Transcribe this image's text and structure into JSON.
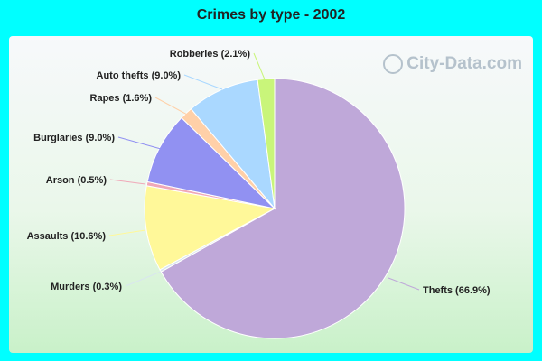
{
  "title": "Crimes by type - 2002",
  "watermark": "City-Data.com",
  "chart_data": {
    "type": "pie",
    "title": "Crimes by type - 2002",
    "slices": [
      {
        "label": "Thefts (66.9%)",
        "value": 66.9,
        "color": "#bfa8d9"
      },
      {
        "label": "Murders (0.3%)",
        "value": 0.3,
        "color": "#d9e6ee"
      },
      {
        "label": "Assaults (10.6%)",
        "value": 10.6,
        "color": "#fff899"
      },
      {
        "label": "Arson (0.5%)",
        "value": 0.5,
        "color": "#f0a8b8"
      },
      {
        "label": "Burglaries (9.0%)",
        "value": 9.0,
        "color": "#9191f2"
      },
      {
        "label": "Rapes (1.6%)",
        "value": 1.6,
        "color": "#ffd0a8"
      },
      {
        "label": "Auto thefts (9.0%)",
        "value": 9.0,
        "color": "#aad8ff"
      },
      {
        "label": "Robberies (2.1%)",
        "value": 2.1,
        "color": "#c9f57a"
      }
    ]
  }
}
